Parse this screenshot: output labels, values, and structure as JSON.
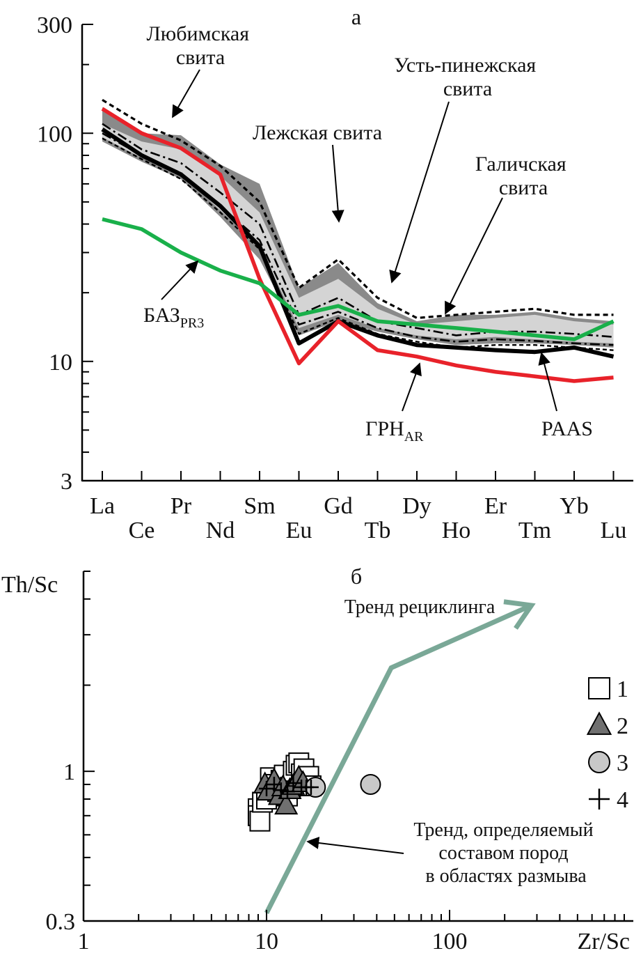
{
  "chart_data": [
    {
      "type": "line",
      "panel_label": "а",
      "scale": "log",
      "ylim": [
        3,
        300
      ],
      "yticks": [
        {
          "value": 300,
          "label": "300"
        },
        {
          "value": 100,
          "label": "100"
        },
        {
          "value": 10,
          "label": "10"
        },
        {
          "value": 3,
          "label": "3"
        }
      ],
      "categories": [
        "La",
        "Ce",
        "Pr",
        "Nd",
        "Sm",
        "Eu",
        "Gd",
        "Tb",
        "Dy",
        "Ho",
        "Er",
        "Tm",
        "Yb",
        "Lu"
      ],
      "band": {
        "upper": [
          130,
          100,
          98,
          73,
          60,
          21,
          27,
          18,
          15,
          16,
          16,
          16.5,
          15.5,
          15
        ],
        "lower": [
          92,
          75,
          63,
          43,
          28,
          13,
          15,
          13.5,
          12.5,
          11.8,
          12,
          12,
          11.8,
          11.5
        ],
        "inner_upper": [
          110,
          92,
          85,
          65,
          45,
          19,
          23,
          17,
          14.5,
          15,
          15.5,
          16,
          15,
          14.5
        ],
        "inner_lower": [
          96,
          78,
          66,
          46,
          32,
          14,
          16,
          14,
          13,
          12.5,
          12.8,
          12.5,
          12.2,
          12
        ]
      },
      "series": [
        {
          "name": "Любимская свита",
          "style": "dotted-heavy",
          "color": "#000000",
          "values": [
            140,
            110,
            93,
            72,
            50,
            21,
            28,
            19,
            15.5,
            16,
            16.5,
            17,
            16,
            16
          ]
        },
        {
          "style": "dash-dot",
          "color": "#000000",
          "values": [
            110,
            85,
            74,
            55,
            40,
            16,
            19,
            15,
            14,
            13,
            13.5,
            13.5,
            13.2,
            12.8
          ]
        },
        {
          "style": "dash-dot",
          "color": "#000000",
          "values": [
            100,
            80,
            67,
            48,
            34,
            14.5,
            16.5,
            14,
            12.8,
            12.2,
            12.5,
            12.3,
            12,
            11.8
          ]
        },
        {
          "style": "dash",
          "color": "#000000",
          "values": [
            95,
            77,
            63,
            45,
            31,
            13.2,
            15.5,
            13.2,
            12.2,
            11.5,
            11.8,
            11.8,
            11.5,
            11.2
          ]
        },
        {
          "name": "PAAS",
          "style": "solid-heavy",
          "color": "#000000",
          "values": [
            104,
            80,
            66,
            48,
            32,
            12,
            15,
            13,
            11.8,
            11.5,
            11.2,
            11,
            11.5,
            10.5
          ]
        },
        {
          "name": "ГРН",
          "name_sub": "AR",
          "style": "solid",
          "color": "#e8222a",
          "values": [
            128,
            100,
            86,
            66,
            23,
            9.8,
            15,
            11.2,
            10.5,
            9.6,
            9,
            8.6,
            8.2,
            8.5
          ]
        },
        {
          "name": "БАЗ",
          "name_sub": "PR3",
          "style": "solid",
          "color": "#19b04a",
          "values": [
            42,
            38,
            30,
            25,
            22,
            16,
            17.5,
            15,
            14.5,
            14,
            13.5,
            13,
            12.5,
            15
          ]
        }
      ],
      "annotations": [
        {
          "text_lines": [
            "Любимская",
            "свита"
          ]
        },
        {
          "text_lines": [
            "Лежская свита"
          ]
        },
        {
          "text_lines": [
            "Усть-пинежская",
            "свита"
          ]
        },
        {
          "text_lines": [
            "Галичская",
            "свита"
          ]
        },
        {
          "text_lines": [
            "БАЗ"
          ],
          "sub": "PR3"
        },
        {
          "text_lines": [
            "ГРН"
          ],
          "sub": "AR"
        },
        {
          "text_lines": [
            "PAAS"
          ]
        }
      ]
    },
    {
      "type": "scatter",
      "panel_label": "б",
      "xscale": "log",
      "yscale": "log",
      "xlabel": "Zr/Sc",
      "ylabel": "Th/Sc",
      "xlim": [
        1,
        1000
      ],
      "ylim": [
        0.3,
        5
      ],
      "xticks": [
        {
          "value": 1,
          "label": "1"
        },
        {
          "value": 10,
          "label": "10"
        },
        {
          "value": 100,
          "label": "100"
        }
      ],
      "yticks": [
        {
          "value": 1,
          "label": "1"
        },
        {
          "value": 0.3,
          "label": "0.3"
        }
      ],
      "legend": [
        {
          "marker": "square",
          "label": "1"
        },
        {
          "marker": "triangle",
          "label": "2"
        },
        {
          "marker": "circle",
          "label": "3"
        },
        {
          "marker": "plus",
          "label": "4"
        }
      ],
      "series": [
        {
          "marker": "square",
          "points": [
            [
              9.0,
              0.74
            ],
            [
              9.0,
              0.7
            ],
            [
              9.2,
              0.67
            ],
            [
              9.5,
              0.78
            ],
            [
              10.0,
              0.8
            ],
            [
              10.5,
              0.95
            ],
            [
              11.0,
              0.9
            ],
            [
              11.5,
              0.85
            ],
            [
              12.0,
              0.93
            ],
            [
              12.5,
              0.97
            ],
            [
              13.0,
              0.82
            ],
            [
              13.5,
              0.88
            ],
            [
              14.0,
              1.0
            ],
            [
              14.5,
              1.05
            ],
            [
              15.0,
              1.07
            ],
            [
              15.5,
              0.98
            ],
            [
              16.0,
              1.02
            ],
            [
              16.5,
              0.92
            ],
            [
              17.0,
              0.96
            ],
            [
              17.5,
              0.89
            ]
          ]
        },
        {
          "marker": "triangle",
          "points": [
            [
              9.8,
              0.9
            ],
            [
              10.2,
              0.85
            ],
            [
              11.0,
              0.93
            ],
            [
              11.8,
              0.82
            ],
            [
              12.3,
              0.88
            ],
            [
              12.8,
              0.76
            ],
            [
              13.4,
              0.86
            ],
            [
              14.0,
              0.89
            ],
            [
              15.0,
              0.95
            ],
            [
              15.8,
              0.91
            ]
          ]
        },
        {
          "marker": "circle",
          "points": [
            [
              18.5,
              0.88
            ],
            [
              37.0,
              0.9
            ]
          ]
        },
        {
          "marker": "plus",
          "points": [
            [
              10.0,
              0.87
            ],
            [
              11.0,
              0.9
            ],
            [
              12.0,
              0.86
            ],
            [
              13.0,
              0.85
            ],
            [
              14.0,
              0.91
            ],
            [
              15.5,
              0.88
            ],
            [
              16.5,
              0.88
            ],
            [
              17.5,
              0.88
            ]
          ]
        }
      ],
      "lines": [
        {
          "name": "Тренд рециклинга",
          "color": "#7aa897",
          "points": [
            [
              10,
              0.32
            ],
            [
              48,
              2.3
            ],
            [
              280,
              3.8
            ]
          ],
          "arrow_end": true
        }
      ],
      "annotations": [
        {
          "text_lines": [
            "Тренд рециклинга"
          ]
        },
        {
          "text_lines": [
            "Тренд, определяемый",
            "составом пород",
            "в областях размыва"
          ]
        }
      ]
    }
  ]
}
